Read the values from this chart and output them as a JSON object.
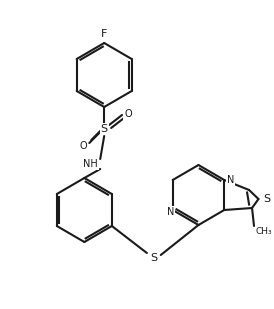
{
  "bg_color": "#ffffff",
  "line_color": "#1a1a1a",
  "line_width": 1.5,
  "figsize": [
    2.74,
    3.09
  ],
  "dpi": 100,
  "bond_color": "#1a1a1a",
  "label_F": "F",
  "label_S": "S",
  "label_O": "O",
  "label_NH": "NH",
  "label_N": "N",
  "label_CH3": "CH₃",
  "font_size": 7
}
